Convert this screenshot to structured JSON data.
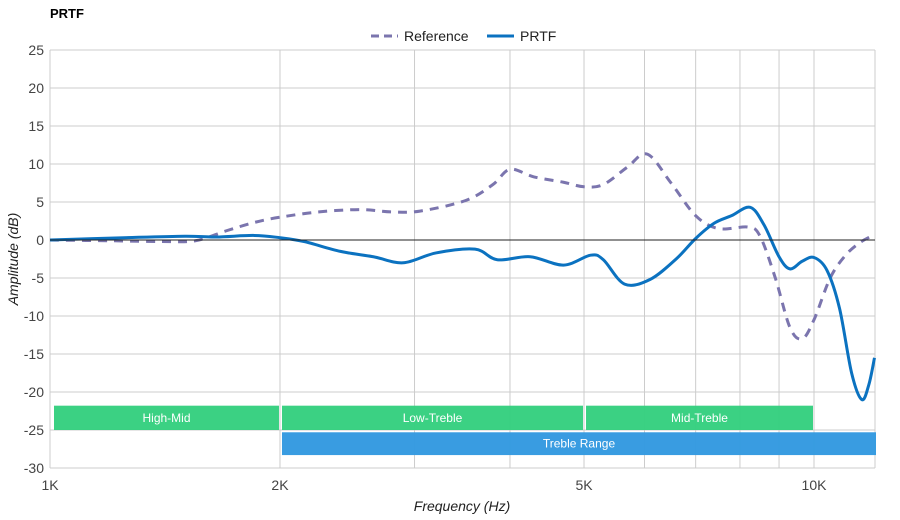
{
  "chart_data": {
    "type": "line",
    "title": "PRTF",
    "xlabel": "Frequency (Hz)",
    "ylabel": "Amplitude (dB)",
    "xscale": "log",
    "xlim": [
      1000,
      12000
    ],
    "ylim": [
      -30,
      25
    ],
    "grid": true,
    "legend_position": "top-center",
    "x_ticks": [
      {
        "value": 1000,
        "label": "1K"
      },
      {
        "value": 2000,
        "label": "2K"
      },
      {
        "value": 5000,
        "label": "5K"
      },
      {
        "value": 10000,
        "label": "10K"
      }
    ],
    "x_minor_grid": [
      3000,
      4000,
      6000,
      7000,
      8000,
      9000
    ],
    "y_ticks": [
      25,
      20,
      15,
      10,
      5,
      0,
      -5,
      -10,
      -15,
      -20,
      -25,
      -30
    ],
    "series": [
      {
        "name": "Reference",
        "style": "dashed",
        "color": "#7b75ae",
        "points": [
          [
            1000,
            0
          ],
          [
            1200,
            -0.1
          ],
          [
            1400,
            -0.2
          ],
          [
            1550,
            -0.1
          ],
          [
            1700,
            1.2
          ],
          [
            1850,
            2.3
          ],
          [
            2000,
            3
          ],
          [
            2250,
            3.7
          ],
          [
            2550,
            4
          ],
          [
            2800,
            3.7
          ],
          [
            3050,
            3.8
          ],
          [
            3500,
            5.2
          ],
          [
            3800,
            7.3
          ],
          [
            4000,
            9.3
          ],
          [
            4300,
            8.3
          ],
          [
            4700,
            7.6
          ],
          [
            5000,
            7
          ],
          [
            5300,
            7.3
          ],
          [
            5700,
            9.6
          ],
          [
            6050,
            11.3
          ],
          [
            6500,
            7.5
          ],
          [
            7000,
            3.2
          ],
          [
            7500,
            1.5
          ],
          [
            8200,
            1.7
          ],
          [
            8500,
            0.5
          ],
          [
            8900,
            -5
          ],
          [
            9300,
            -11.5
          ],
          [
            9650,
            -13
          ],
          [
            10000,
            -10.5
          ],
          [
            10500,
            -5
          ],
          [
            11000,
            -2
          ],
          [
            11500,
            -0.3
          ],
          [
            12000,
            0.7
          ]
        ]
      },
      {
        "name": "PRTF",
        "style": "solid",
        "color": "#0b72c0",
        "points": [
          [
            1000,
            0
          ],
          [
            1250,
            0.3
          ],
          [
            1500,
            0.5
          ],
          [
            1650,
            0.4
          ],
          [
            1850,
            0.6
          ],
          [
            2000,
            0.3
          ],
          [
            2150,
            -0.2
          ],
          [
            2400,
            -1.5
          ],
          [
            2650,
            -2.2
          ],
          [
            2900,
            -3
          ],
          [
            3200,
            -1.7
          ],
          [
            3600,
            -1.2
          ],
          [
            3850,
            -2.6
          ],
          [
            4250,
            -2.2
          ],
          [
            4700,
            -3.3
          ],
          [
            5100,
            -2
          ],
          [
            5300,
            -2.6
          ],
          [
            5650,
            -5.8
          ],
          [
            6100,
            -5.2
          ],
          [
            6600,
            -2.5
          ],
          [
            7000,
            0.2
          ],
          [
            7400,
            2.2
          ],
          [
            7800,
            3.2
          ],
          [
            8250,
            4.3
          ],
          [
            8600,
            2
          ],
          [
            9000,
            -2.2
          ],
          [
            9300,
            -3.8
          ],
          [
            9650,
            -2.8
          ],
          [
            10000,
            -2.3
          ],
          [
            10400,
            -4
          ],
          [
            10800,
            -9
          ],
          [
            11200,
            -17.5
          ],
          [
            11550,
            -21
          ],
          [
            11800,
            -19
          ],
          [
            12000,
            -15.5
          ]
        ]
      }
    ],
    "bands": [
      {
        "label": "High-Mid",
        "from": 1000,
        "to": 2000,
        "row": 1,
        "color": "#35d07f"
      },
      {
        "label": "Low-Treble",
        "from": 2000,
        "to": 5000,
        "row": 1,
        "color": "#35d07f"
      },
      {
        "label": "Mid-Treble",
        "from": 5000,
        "to": 10000,
        "row": 1,
        "color": "#35d07f"
      },
      {
        "label": "Treble Range",
        "from": 2000,
        "to": 12000,
        "row": 2,
        "color": "#3399e0"
      }
    ]
  }
}
